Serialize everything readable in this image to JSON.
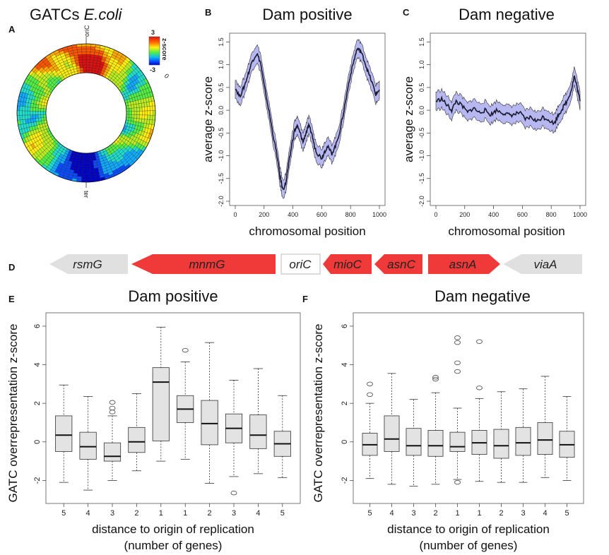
{
  "figure": {
    "width": 862,
    "height": 786
  },
  "chart_data": [
    {
      "id": "A",
      "panel_label": "A",
      "type": "heatmap",
      "title_prefix": "GATCs",
      "title_species": "E.coli",
      "labels": {
        "top": "oriC",
        "bottom": "ter",
        "right": "0"
      },
      "colorbar": {
        "max_label": "3",
        "min_label": "-3",
        "axis_label": "z-score",
        "vmin": -3,
        "vmax": 3
      },
      "rings": 11,
      "sectors": 90,
      "orientation": "oriC at top (0), ter at bottom",
      "colors": [
        "#0000cc",
        "#0a4cff",
        "#11aaff",
        "#22ddcc",
        "#55ee44",
        "#bbee22",
        "#ffee11",
        "#ffaa00",
        "#ff5500",
        "#e01010"
      ]
    },
    {
      "id": "B",
      "panel_label": "B",
      "type": "line",
      "title": "Dam positive",
      "xlabel": "chromosomal position",
      "ylabel": "average z-score",
      "xlim": [
        0,
        1000
      ],
      "ylim": [
        -2.0,
        1.6
      ],
      "xticks": [
        0,
        200,
        400,
        600,
        800,
        1000
      ],
      "yticks": [
        -2.0,
        -1.5,
        -1.0,
        -0.5,
        0.0,
        0.5,
        1.0,
        1.5
      ],
      "line_color": "#1a1a2e",
      "band_color": "#aaaaee",
      "points": [
        [
          0,
          0.5
        ],
        [
          30,
          0.3
        ],
        [
          60,
          0.5
        ],
        [
          90,
          0.8
        ],
        [
          120,
          1.1
        ],
        [
          150,
          1.25
        ],
        [
          175,
          1.05
        ],
        [
          200,
          0.55
        ],
        [
          230,
          0.05
        ],
        [
          260,
          -0.5
        ],
        [
          290,
          -1.0
        ],
        [
          310,
          -1.45
        ],
        [
          330,
          -1.75
        ],
        [
          350,
          -1.6
        ],
        [
          370,
          -1.2
        ],
        [
          390,
          -0.8
        ],
        [
          410,
          -0.45
        ],
        [
          430,
          -0.35
        ],
        [
          450,
          -0.5
        ],
        [
          470,
          -0.7
        ],
        [
          490,
          -0.5
        ],
        [
          510,
          -0.35
        ],
        [
          530,
          -0.5
        ],
        [
          550,
          -0.8
        ],
        [
          570,
          -0.95
        ],
        [
          600,
          -1.05
        ],
        [
          620,
          -0.9
        ],
        [
          640,
          -0.8
        ],
        [
          670,
          -0.95
        ],
        [
          700,
          -0.75
        ],
        [
          730,
          -0.4
        ],
        [
          760,
          0.1
        ],
        [
          790,
          0.65
        ],
        [
          820,
          1.05
        ],
        [
          845,
          1.35
        ],
        [
          870,
          1.3
        ],
        [
          895,
          1.1
        ],
        [
          920,
          0.85
        ],
        [
          950,
          0.6
        ],
        [
          975,
          0.35
        ],
        [
          1000,
          0.45
        ]
      ],
      "band_half_width": 0.2
    },
    {
      "id": "C",
      "panel_label": "C",
      "type": "line",
      "title": "Dam negative",
      "xlabel": "chromosomal position",
      "ylabel": "average z-score",
      "xlim": [
        0,
        1000
      ],
      "ylim": [
        -2.0,
        1.6
      ],
      "xticks": [
        0,
        200,
        400,
        600,
        800,
        1000
      ],
      "yticks": [
        -2.0,
        -1.5,
        -1.0,
        -0.5,
        0.0,
        0.5,
        1.0,
        1.5
      ],
      "line_color": "#1a1a2e",
      "band_color": "#aaaaee",
      "points": [
        [
          0,
          0.2
        ],
        [
          40,
          0.25
        ],
        [
          80,
          0.1
        ],
        [
          110,
          0.0
        ],
        [
          140,
          0.2
        ],
        [
          180,
          0.1
        ],
        [
          220,
          -0.05
        ],
        [
          260,
          0.05
        ],
        [
          300,
          -0.05
        ],
        [
          340,
          0.0
        ],
        [
          380,
          -0.1
        ],
        [
          420,
          0.0
        ],
        [
          460,
          -0.05
        ],
        [
          500,
          -0.1
        ],
        [
          540,
          -0.1
        ],
        [
          580,
          -0.05
        ],
        [
          620,
          -0.2
        ],
        [
          660,
          -0.15
        ],
        [
          700,
          -0.25
        ],
        [
          740,
          -0.15
        ],
        [
          780,
          -0.2
        ],
        [
          820,
          -0.3
        ],
        [
          850,
          -0.1
        ],
        [
          880,
          0.05
        ],
        [
          910,
          0.2
        ],
        [
          940,
          0.45
        ],
        [
          960,
          0.75
        ],
        [
          980,
          0.5
        ],
        [
          1000,
          0.2
        ]
      ],
      "band_half_width": 0.2
    },
    {
      "id": "E",
      "panel_label": "E",
      "type": "box",
      "title": "Dam positive",
      "xlabel_line1": "distance to origin of replication",
      "xlabel_line2": "(number of genes)",
      "ylabel": "GATC overrepresentation z-score",
      "ylim": [
        -2.9,
        6.4
      ],
      "yticks": [
        -2,
        0,
        2,
        4,
        6
      ],
      "categories": [
        "5",
        "4",
        "3",
        "2",
        "1",
        "1",
        "2",
        "3",
        "4",
        "5"
      ],
      "boxes": [
        {
          "min": -2.1,
          "q1": -0.5,
          "median": 0.35,
          "q3": 1.35,
          "max": 2.95,
          "outliers": []
        },
        {
          "min": -2.5,
          "q1": -0.9,
          "median": -0.25,
          "q3": 0.5,
          "max": 2.35,
          "outliers": []
        },
        {
          "min": -2.0,
          "q1": -1.0,
          "median": -0.75,
          "q3": -0.05,
          "max": 1.35,
          "outliers": [
            1.55,
            1.75,
            2.05
          ]
        },
        {
          "min": -1.5,
          "q1": -0.55,
          "median": 0.0,
          "q3": 0.75,
          "max": 2.5,
          "outliers": []
        },
        {
          "min": -1.0,
          "q1": 0.05,
          "median": 3.1,
          "q3": 3.85,
          "max": 5.95,
          "outliers": []
        },
        {
          "min": -0.9,
          "q1": 1.0,
          "median": 1.7,
          "q3": 2.4,
          "max": 4.15,
          "outliers": [
            4.75
          ]
        },
        {
          "min": -2.15,
          "q1": -0.15,
          "median": 0.95,
          "q3": 2.15,
          "max": 5.15,
          "outliers": []
        },
        {
          "min": -1.8,
          "q1": -0.05,
          "median": 0.7,
          "q3": 1.45,
          "max": 3.2,
          "outliers": [
            -2.65
          ]
        },
        {
          "min": -1.65,
          "q1": -0.35,
          "median": 0.35,
          "q3": 1.4,
          "max": 3.8,
          "outliers": []
        },
        {
          "min": -1.85,
          "q1": -0.75,
          "median": -0.1,
          "q3": 0.55,
          "max": 2.4,
          "outliers": []
        }
      ]
    },
    {
      "id": "F",
      "panel_label": "F",
      "type": "box",
      "title": "Dam negative",
      "xlabel_line1": "distance to origin of replication",
      "xlabel_line2": "(number of genes)",
      "ylabel": "GATC overrepresentation z-score",
      "ylim": [
        -2.9,
        6.4
      ],
      "yticks": [
        -2,
        0,
        2,
        4,
        6
      ],
      "categories": [
        "5",
        "4",
        "3",
        "2",
        "1",
        "1",
        "2",
        "3",
        "4",
        "5"
      ],
      "boxes": [
        {
          "min": -1.9,
          "q1": -0.7,
          "median": -0.15,
          "q3": 0.45,
          "max": 2.0,
          "outliers": [
            2.45,
            3.0
          ]
        },
        {
          "min": -2.2,
          "q1": -0.5,
          "median": 0.15,
          "q3": 1.35,
          "max": 3.55,
          "outliers": []
        },
        {
          "min": -2.3,
          "q1": -0.7,
          "median": -0.2,
          "q3": 0.7,
          "max": 2.2,
          "outliers": []
        },
        {
          "min": -2.2,
          "q1": -0.75,
          "median": -0.2,
          "q3": 0.6,
          "max": 2.55,
          "outliers": [
            3.25,
            3.35
          ]
        },
        {
          "min": -1.95,
          "q1": -0.5,
          "median": -0.25,
          "q3": 0.5,
          "max": 1.75,
          "outliers": [
            -2.1,
            3.65,
            4.1,
            5.15,
            5.4
          ]
        },
        {
          "min": -2.05,
          "q1": -0.65,
          "median": -0.05,
          "q3": 0.6,
          "max": 2.25,
          "outliers": [
            2.8,
            5.2
          ]
        },
        {
          "min": -2.1,
          "q1": -0.85,
          "median": -0.2,
          "q3": 0.65,
          "max": 2.6,
          "outliers": []
        },
        {
          "min": -2.1,
          "q1": -0.7,
          "median": -0.05,
          "q3": 0.75,
          "max": 2.75,
          "outliers": []
        },
        {
          "min": -1.85,
          "q1": -0.65,
          "median": 0.1,
          "q3": 1.0,
          "max": 3.4,
          "outliers": []
        },
        {
          "min": -2.0,
          "q1": -0.8,
          "median": -0.15,
          "q3": 0.55,
          "max": 2.35,
          "outliers": []
        }
      ]
    }
  ],
  "gene_map": {
    "panel_label": "D",
    "red_color": "#f03a3a",
    "grey_color": "#e0e0e0",
    "genes": [
      {
        "name": "rsmG",
        "color": "grey",
        "direction": "left"
      },
      {
        "name": "mnmG",
        "color": "red",
        "direction": "left"
      },
      {
        "name": "oriC",
        "color": "white",
        "direction": "none"
      },
      {
        "name": "mioC",
        "color": "red",
        "direction": "left"
      },
      {
        "name": "asnC",
        "color": "red",
        "direction": "left"
      },
      {
        "name": "asnA",
        "color": "red",
        "direction": "right"
      },
      {
        "name": "viaA",
        "color": "grey",
        "direction": "left"
      }
    ]
  }
}
